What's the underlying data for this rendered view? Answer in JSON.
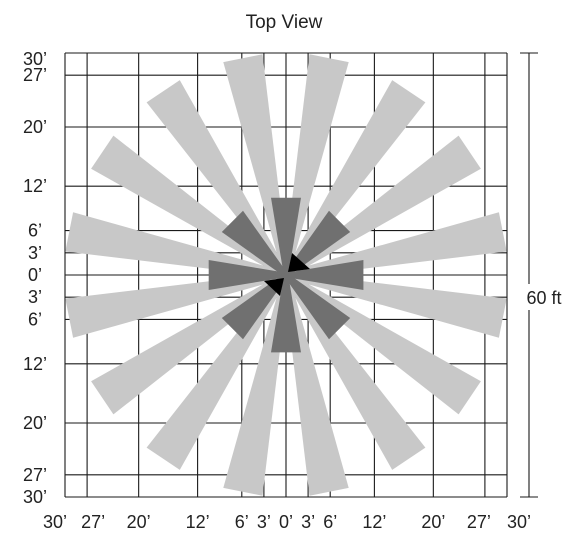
{
  "title": "Top View",
  "colors": {
    "beam_light": "#c8c8c8",
    "beam_dark": "#707070",
    "grid": "#1a1a1a",
    "emitter": "#000000"
  },
  "axis_ticks": [
    "30’",
    "27’",
    "20’",
    "12’",
    "6’",
    "3’",
    "0’",
    "3’",
    "6’",
    "12’",
    "20’",
    "27’",
    "30’"
  ],
  "axis_tick_values_ft": [
    -30,
    -27,
    -20,
    -12,
    -6,
    -3,
    0,
    3,
    6,
    12,
    20,
    27,
    30
  ],
  "dimension_label": "60 ft",
  "beams": {
    "long_count": 16,
    "long_reach_ft": 30,
    "short_count": 8,
    "short_reach_ft": 10.5
  }
}
